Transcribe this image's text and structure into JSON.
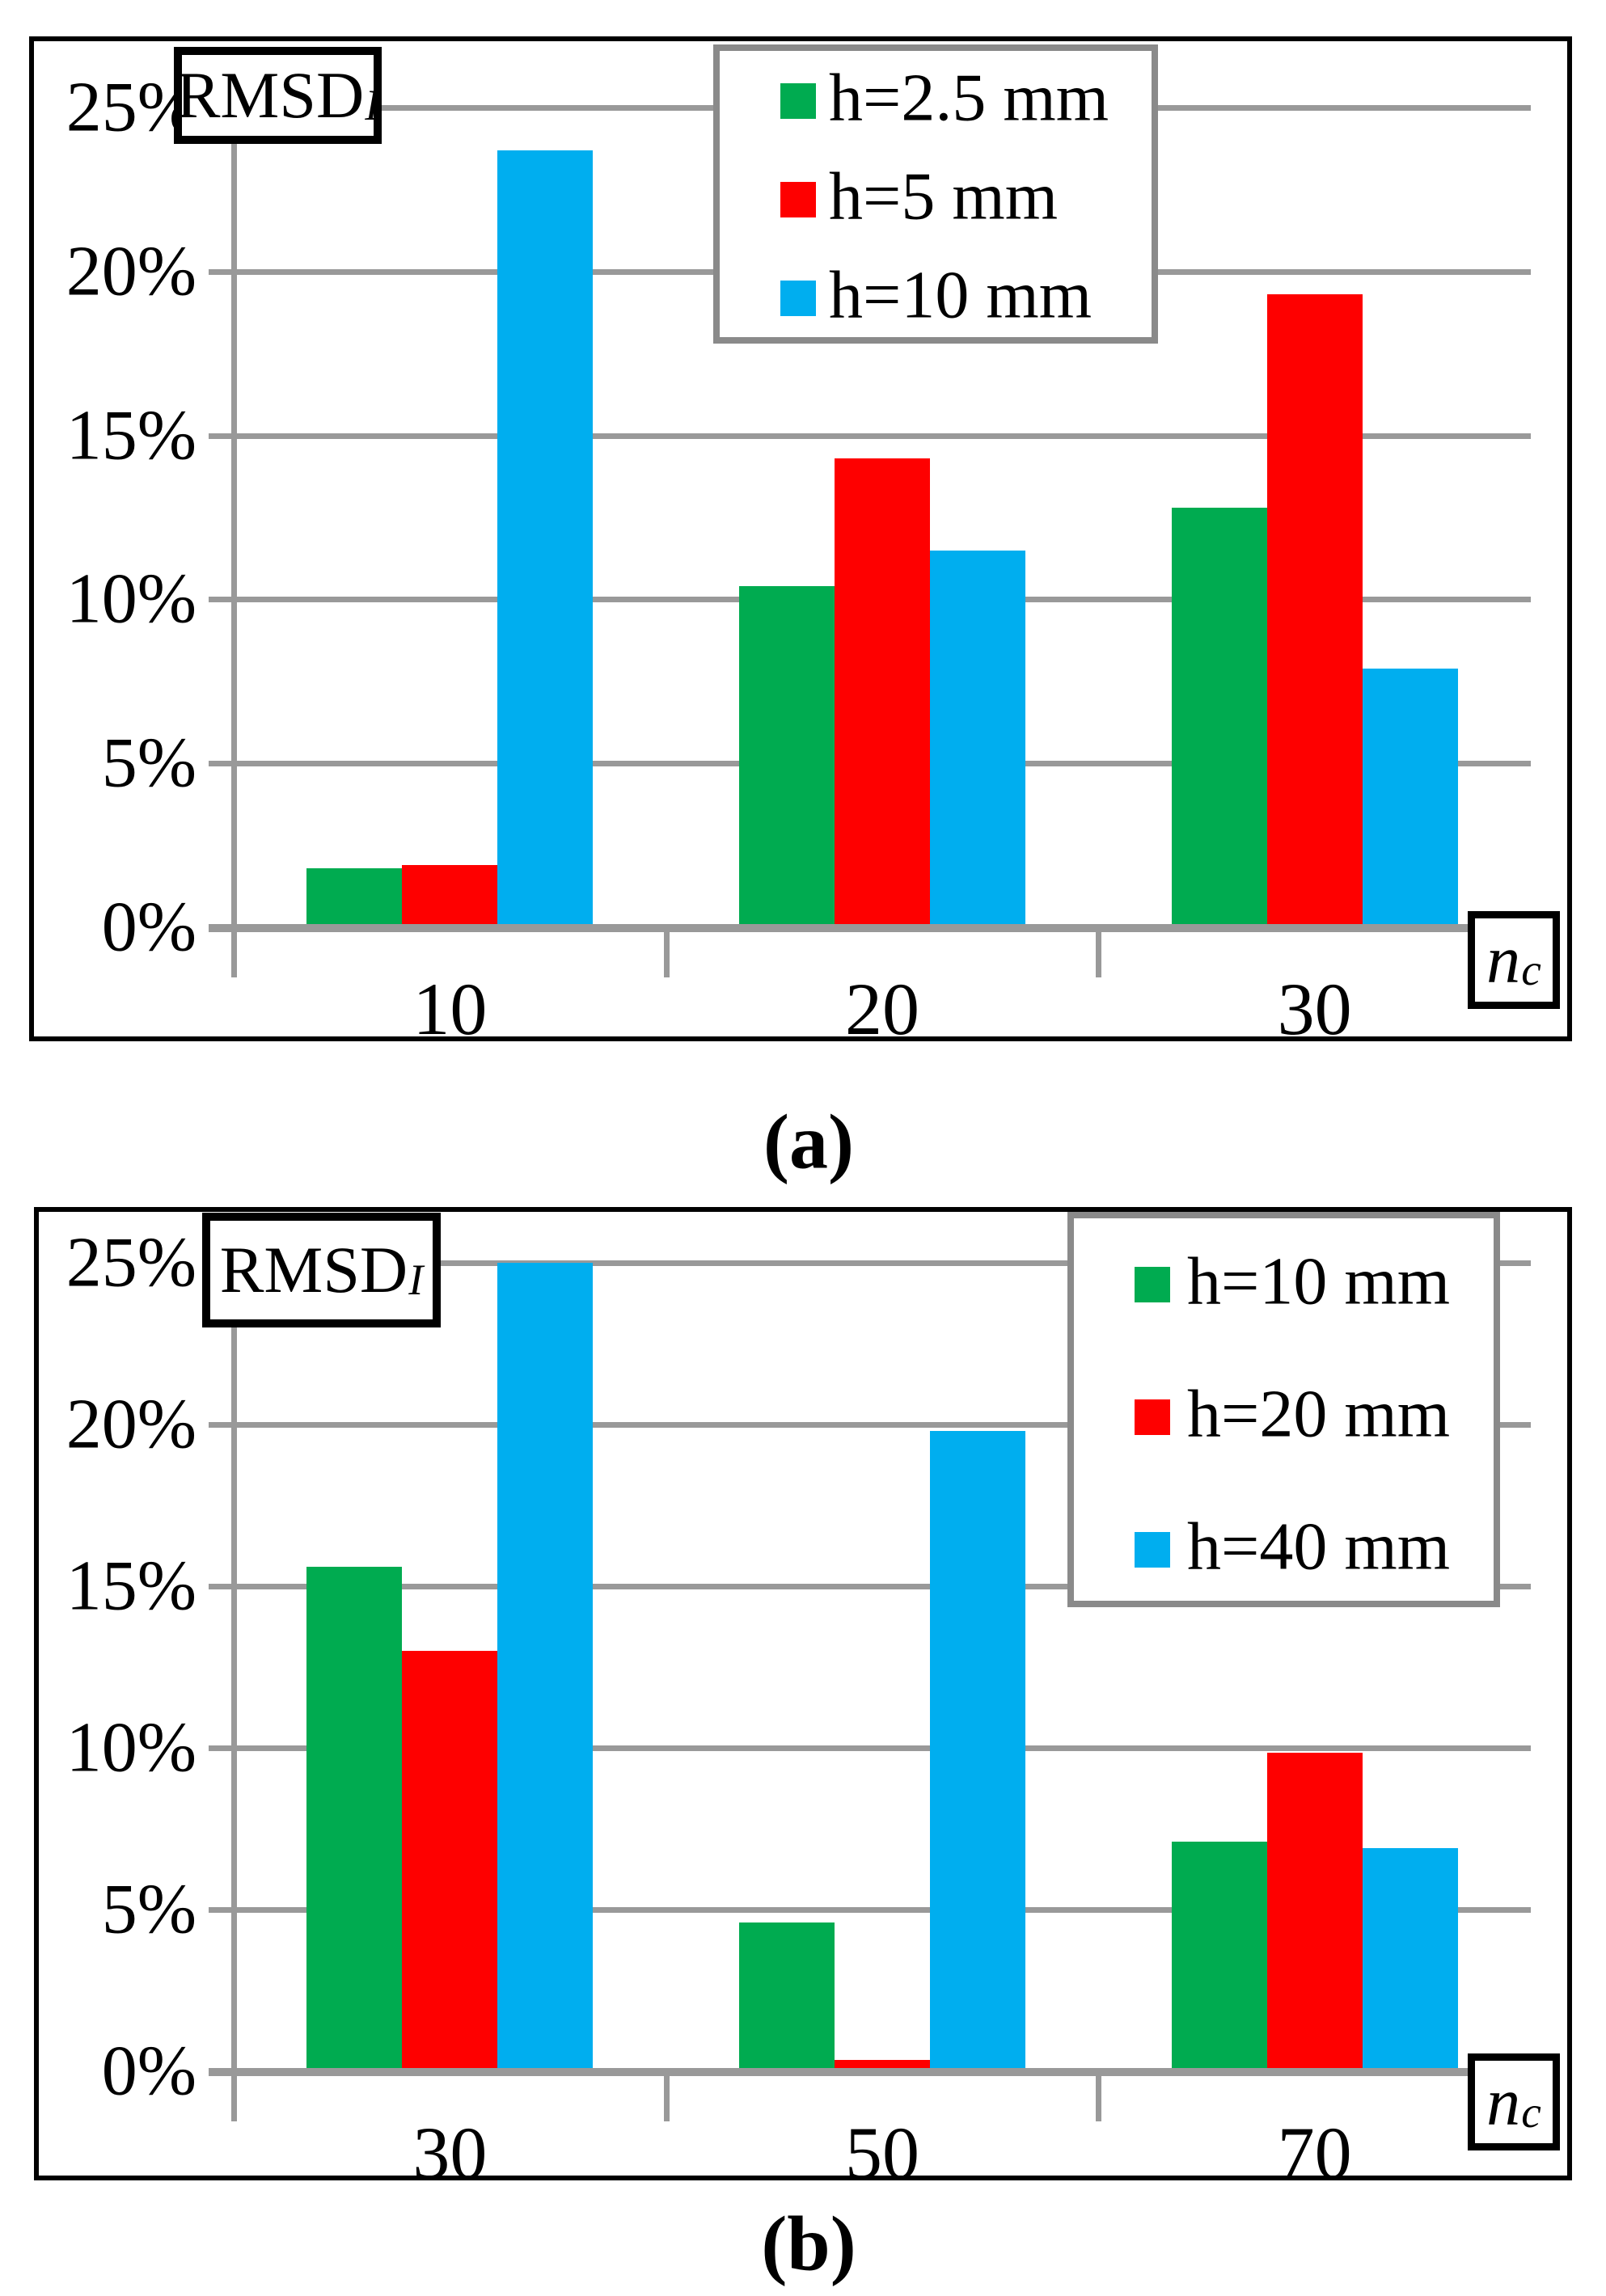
{
  "page": {
    "caption_a": "(a)",
    "caption_b": "(b)"
  },
  "colors": {
    "green": "#00AB50",
    "red": "#FE0000",
    "blue": "#00AEEF",
    "grid": "#999999",
    "legend_border": "#8A8A8A"
  },
  "chart_data": [
    {
      "id": "a",
      "type": "bar",
      "title": "RMSD",
      "title_sub": "I",
      "xlabel": "n",
      "xlabel_sub": "c",
      "categories": [
        "10",
        "20",
        "30"
      ],
      "series": [
        {
          "name": "h=2.5 mm",
          "color_key": "green",
          "values": [
            1.8,
            10.4,
            12.8
          ]
        },
        {
          "name": "h=5 mm",
          "color_key": "red",
          "values": [
            1.9,
            14.3,
            19.3
          ]
        },
        {
          "name": "h=10 mm",
          "color_key": "blue",
          "values": [
            23.7,
            11.5,
            7.9
          ]
        }
      ],
      "y_ticks": [
        "0%",
        "5%",
        "10%",
        "15%",
        "20%",
        "25%"
      ],
      "ylim": [
        0,
        25
      ],
      "grid": true,
      "legend_position": "top-right"
    },
    {
      "id": "b",
      "type": "bar",
      "title": "RMSD",
      "title_sub": "I",
      "xlabel": "n",
      "xlabel_sub": "c",
      "categories": [
        "30",
        "50",
        "70"
      ],
      "series": [
        {
          "name": "h=10 mm",
          "color_key": "green",
          "values": [
            15.6,
            4.6,
            7.1
          ]
        },
        {
          "name": "h=20 mm",
          "color_key": "red",
          "values": [
            13.0,
            0.35,
            9.85
          ]
        },
        {
          "name": "h=40 mm",
          "color_key": "blue",
          "values": [
            25.0,
            19.8,
            6.9
          ]
        }
      ],
      "y_ticks": [
        "0%",
        "5%",
        "10%",
        "15%",
        "20%",
        "25%"
      ],
      "ylim": [
        0,
        25
      ],
      "grid": true,
      "legend_position": "top-right"
    }
  ]
}
